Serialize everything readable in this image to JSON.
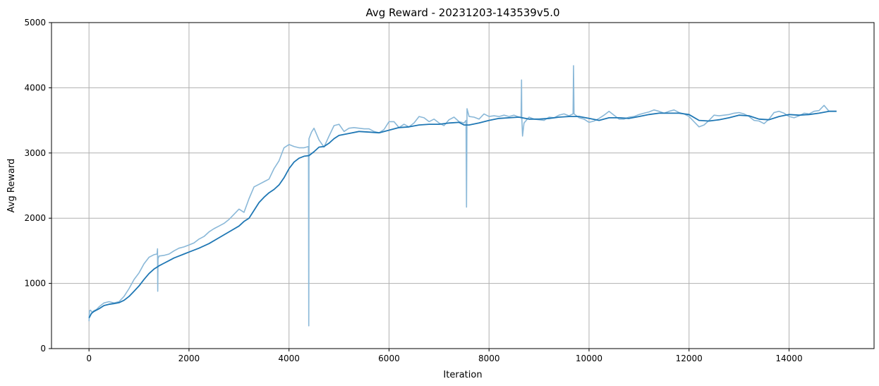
{
  "chart_data": {
    "type": "line",
    "title": "Avg Reward - 20231203-143539v5.0",
    "xlabel": "Iteration",
    "ylabel": "Avg Reward",
    "xlim": [
      -750,
      15700
    ],
    "ylim": [
      0,
      5000
    ],
    "xticks": [
      0,
      2000,
      4000,
      6000,
      8000,
      10000,
      12000,
      14000
    ],
    "yticks": [
      0,
      1000,
      2000,
      3000,
      4000,
      5000
    ],
    "grid": true,
    "colors": {
      "raw": "#8ab8d8",
      "smooth": "#1f77b4"
    },
    "series": [
      {
        "points": [
          [
            0,
            420
          ],
          [
            10,
            580
          ],
          [
            30,
            590
          ],
          [
            60,
            560
          ],
          [
            100,
            580
          ],
          [
            150,
            600
          ],
          [
            200,
            640
          ],
          [
            300,
            700
          ],
          [
            400,
            720
          ],
          [
            500,
            700
          ],
          [
            600,
            720
          ],
          [
            700,
            800
          ],
          [
            800,
            920
          ],
          [
            900,
            1060
          ],
          [
            1000,
            1160
          ],
          [
            1100,
            1300
          ],
          [
            1200,
            1400
          ],
          [
            1300,
            1440
          ],
          [
            1360,
            1450
          ],
          [
            1370,
            1530
          ],
          [
            1375,
            880
          ],
          [
            1380,
            1380
          ],
          [
            1400,
            1420
          ],
          [
            1500,
            1430
          ],
          [
            1600,
            1450
          ],
          [
            1700,
            1500
          ],
          [
            1800,
            1540
          ],
          [
            1900,
            1560
          ],
          [
            2000,
            1590
          ],
          [
            2100,
            1620
          ],
          [
            2200,
            1680
          ],
          [
            2300,
            1720
          ],
          [
            2400,
            1790
          ],
          [
            2500,
            1840
          ],
          [
            2600,
            1880
          ],
          [
            2700,
            1920
          ],
          [
            2800,
            1980
          ],
          [
            2900,
            2060
          ],
          [
            3000,
            2140
          ],
          [
            3100,
            2090
          ],
          [
            3200,
            2300
          ],
          [
            3300,
            2480
          ],
          [
            3400,
            2520
          ],
          [
            3500,
            2560
          ],
          [
            3600,
            2600
          ],
          [
            3700,
            2760
          ],
          [
            3800,
            2880
          ],
          [
            3900,
            3080
          ],
          [
            4000,
            3130
          ],
          [
            4100,
            3100
          ],
          [
            4200,
            3080
          ],
          [
            4300,
            3080
          ],
          [
            4390,
            3100
          ],
          [
            4395,
            350
          ],
          [
            4400,
            3220
          ],
          [
            4450,
            3320
          ],
          [
            4500,
            3380
          ],
          [
            4600,
            3200
          ],
          [
            4700,
            3090
          ],
          [
            4800,
            3260
          ],
          [
            4900,
            3420
          ],
          [
            5000,
            3440
          ],
          [
            5100,
            3330
          ],
          [
            5200,
            3380
          ],
          [
            5300,
            3390
          ],
          [
            5400,
            3380
          ],
          [
            5500,
            3370
          ],
          [
            5600,
            3370
          ],
          [
            5700,
            3330
          ],
          [
            5800,
            3310
          ],
          [
            5900,
            3360
          ],
          [
            6000,
            3480
          ],
          [
            6100,
            3480
          ],
          [
            6200,
            3390
          ],
          [
            6300,
            3440
          ],
          [
            6400,
            3400
          ],
          [
            6500,
            3460
          ],
          [
            6600,
            3560
          ],
          [
            6700,
            3540
          ],
          [
            6800,
            3480
          ],
          [
            6900,
            3520
          ],
          [
            7000,
            3460
          ],
          [
            7100,
            3420
          ],
          [
            7200,
            3510
          ],
          [
            7300,
            3550
          ],
          [
            7400,
            3480
          ],
          [
            7500,
            3460
          ],
          [
            7540,
            3500
          ],
          [
            7550,
            2170
          ],
          [
            7560,
            3680
          ],
          [
            7600,
            3560
          ],
          [
            7700,
            3550
          ],
          [
            7800,
            3520
          ],
          [
            7900,
            3600
          ],
          [
            8000,
            3560
          ],
          [
            8100,
            3570
          ],
          [
            8200,
            3560
          ],
          [
            8300,
            3580
          ],
          [
            8400,
            3560
          ],
          [
            8500,
            3580
          ],
          [
            8600,
            3550
          ],
          [
            8640,
            3540
          ],
          [
            8650,
            4120
          ],
          [
            8655,
            3560
          ],
          [
            8670,
            3260
          ],
          [
            8700,
            3460
          ],
          [
            8800,
            3550
          ],
          [
            8900,
            3520
          ],
          [
            9000,
            3510
          ],
          [
            9100,
            3500
          ],
          [
            9200,
            3550
          ],
          [
            9300,
            3540
          ],
          [
            9400,
            3580
          ],
          [
            9500,
            3600
          ],
          [
            9600,
            3570
          ],
          [
            9680,
            3600
          ],
          [
            9690,
            4340
          ],
          [
            9700,
            3600
          ],
          [
            9800,
            3540
          ],
          [
            9900,
            3520
          ],
          [
            10000,
            3470
          ],
          [
            10100,
            3490
          ],
          [
            10200,
            3530
          ],
          [
            10300,
            3580
          ],
          [
            10400,
            3640
          ],
          [
            10500,
            3580
          ],
          [
            10600,
            3520
          ],
          [
            10700,
            3520
          ],
          [
            10800,
            3550
          ],
          [
            10900,
            3560
          ],
          [
            11000,
            3590
          ],
          [
            11100,
            3610
          ],
          [
            11200,
            3630
          ],
          [
            11300,
            3660
          ],
          [
            11400,
            3640
          ],
          [
            11500,
            3610
          ],
          [
            11600,
            3640
          ],
          [
            11700,
            3660
          ],
          [
            11800,
            3620
          ],
          [
            11900,
            3600
          ],
          [
            12000,
            3560
          ],
          [
            12100,
            3480
          ],
          [
            12200,
            3400
          ],
          [
            12300,
            3430
          ],
          [
            12400,
            3500
          ],
          [
            12500,
            3580
          ],
          [
            12600,
            3570
          ],
          [
            12700,
            3580
          ],
          [
            12800,
            3590
          ],
          [
            12900,
            3610
          ],
          [
            13000,
            3620
          ],
          [
            13100,
            3600
          ],
          [
            13200,
            3560
          ],
          [
            13300,
            3500
          ],
          [
            13400,
            3490
          ],
          [
            13500,
            3450
          ],
          [
            13600,
            3520
          ],
          [
            13700,
            3620
          ],
          [
            13800,
            3640
          ],
          [
            13900,
            3610
          ],
          [
            14000,
            3560
          ],
          [
            14100,
            3540
          ],
          [
            14200,
            3570
          ],
          [
            14300,
            3610
          ],
          [
            14400,
            3600
          ],
          [
            14500,
            3640
          ],
          [
            14600,
            3650
          ],
          [
            14700,
            3730
          ],
          [
            14800,
            3640
          ],
          [
            14900,
            3640
          ],
          [
            14950,
            3640
          ]
        ]
      },
      {
        "points": [
          [
            0,
            470
          ],
          [
            50,
            540
          ],
          [
            100,
            570
          ],
          [
            200,
            610
          ],
          [
            300,
            660
          ],
          [
            400,
            680
          ],
          [
            500,
            690
          ],
          [
            600,
            705
          ],
          [
            700,
            740
          ],
          [
            800,
            800
          ],
          [
            900,
            880
          ],
          [
            1000,
            960
          ],
          [
            1100,
            1060
          ],
          [
            1200,
            1150
          ],
          [
            1300,
            1220
          ],
          [
            1400,
            1270
          ],
          [
            1500,
            1310
          ],
          [
            1600,
            1350
          ],
          [
            1700,
            1390
          ],
          [
            1800,
            1420
          ],
          [
            1900,
            1450
          ],
          [
            2000,
            1480
          ],
          [
            2200,
            1540
          ],
          [
            2400,
            1610
          ],
          [
            2600,
            1700
          ],
          [
            2800,
            1790
          ],
          [
            3000,
            1880
          ],
          [
            3100,
            1950
          ],
          [
            3200,
            2000
          ],
          [
            3300,
            2120
          ],
          [
            3400,
            2240
          ],
          [
            3500,
            2320
          ],
          [
            3600,
            2390
          ],
          [
            3700,
            2440
          ],
          [
            3800,
            2510
          ],
          [
            3900,
            2620
          ],
          [
            4000,
            2760
          ],
          [
            4100,
            2860
          ],
          [
            4200,
            2920
          ],
          [
            4300,
            2950
          ],
          [
            4400,
            2960
          ],
          [
            4500,
            3020
          ],
          [
            4600,
            3090
          ],
          [
            4700,
            3100
          ],
          [
            4800,
            3150
          ],
          [
            4900,
            3220
          ],
          [
            5000,
            3270
          ],
          [
            5200,
            3300
          ],
          [
            5400,
            3330
          ],
          [
            5600,
            3320
          ],
          [
            5800,
            3310
          ],
          [
            6000,
            3350
          ],
          [
            6200,
            3390
          ],
          [
            6400,
            3400
          ],
          [
            6600,
            3430
          ],
          [
            6800,
            3440
          ],
          [
            7000,
            3440
          ],
          [
            7200,
            3460
          ],
          [
            7400,
            3470
          ],
          [
            7500,
            3430
          ],
          [
            7600,
            3430
          ],
          [
            7800,
            3460
          ],
          [
            8000,
            3500
          ],
          [
            8200,
            3530
          ],
          [
            8400,
            3540
          ],
          [
            8600,
            3550
          ],
          [
            8800,
            3520
          ],
          [
            9000,
            3520
          ],
          [
            9200,
            3530
          ],
          [
            9400,
            3550
          ],
          [
            9600,
            3560
          ],
          [
            9800,
            3560
          ],
          [
            10000,
            3530
          ],
          [
            10200,
            3500
          ],
          [
            10400,
            3540
          ],
          [
            10600,
            3540
          ],
          [
            10800,
            3530
          ],
          [
            11000,
            3560
          ],
          [
            11200,
            3590
          ],
          [
            11400,
            3610
          ],
          [
            11600,
            3610
          ],
          [
            11800,
            3610
          ],
          [
            12000,
            3590
          ],
          [
            12200,
            3500
          ],
          [
            12400,
            3490
          ],
          [
            12600,
            3510
          ],
          [
            12800,
            3540
          ],
          [
            13000,
            3580
          ],
          [
            13200,
            3570
          ],
          [
            13400,
            3520
          ],
          [
            13600,
            3510
          ],
          [
            13800,
            3560
          ],
          [
            14000,
            3590
          ],
          [
            14200,
            3580
          ],
          [
            14400,
            3590
          ],
          [
            14600,
            3610
          ],
          [
            14800,
            3640
          ],
          [
            14950,
            3640
          ]
        ]
      }
    ]
  }
}
